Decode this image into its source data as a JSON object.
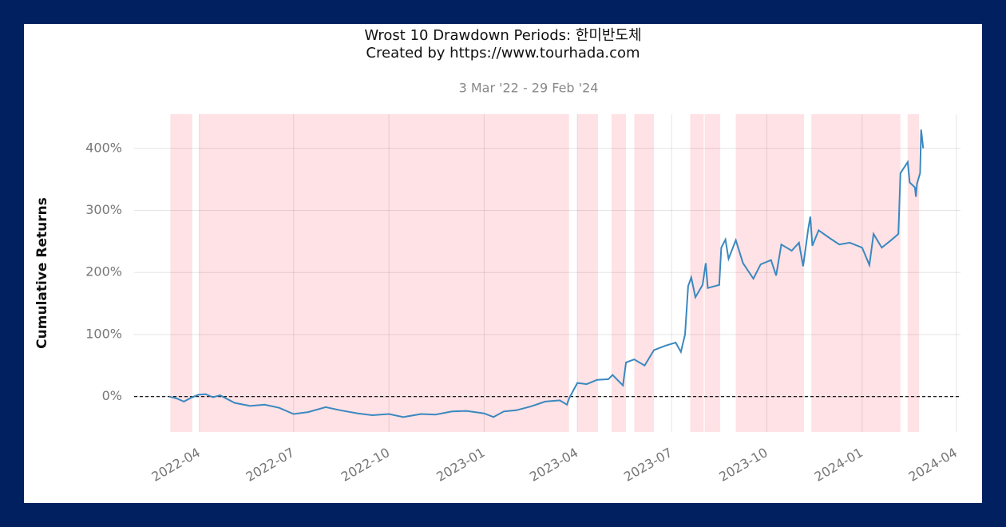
{
  "chart_data": {
    "type": "line",
    "title": "Wrost 10 Drawdown Periods: 한미반도체",
    "subtitle": "Created by https://www.tourhada.com",
    "date_range": "3 Mar '22 - 29 Feb '24",
    "ylabel": "Cumulative Returns",
    "xlim": [
      "2022-01-28",
      "2024-04-05"
    ],
    "ylim": [
      -57,
      455
    ],
    "xticks": [
      {
        "value": "2022-04-01",
        "label": "2022-04"
      },
      {
        "value": "2022-07-01",
        "label": "2022-07"
      },
      {
        "value": "2022-10-01",
        "label": "2022-10"
      },
      {
        "value": "2023-01-01",
        "label": "2023-01"
      },
      {
        "value": "2023-04-01",
        "label": "2023-04"
      },
      {
        "value": "2023-07-01",
        "label": "2023-07"
      },
      {
        "value": "2023-10-01",
        "label": "2023-10"
      },
      {
        "value": "2024-01-01",
        "label": "2024-01"
      },
      {
        "value": "2024-04-01",
        "label": "2024-04"
      }
    ],
    "yticks": [
      {
        "value": 0,
        "label": "0%"
      },
      {
        "value": 100,
        "label": "100%"
      },
      {
        "value": 200,
        "label": "200%"
      },
      {
        "value": 300,
        "label": "300%"
      },
      {
        "value": 400,
        "label": "400%"
      }
    ],
    "grid": true,
    "hline": 0,
    "drawdown_color": "#ffd6da",
    "drawdowns": [
      [
        "2022-03-04",
        "2022-03-25"
      ],
      [
        "2022-04-01",
        "2023-03-24"
      ],
      [
        "2023-04-01",
        "2023-04-21"
      ],
      [
        "2023-05-04",
        "2023-05-18"
      ],
      [
        "2023-05-26",
        "2023-06-14"
      ],
      [
        "2023-07-19",
        "2023-08-01"
      ],
      [
        "2023-08-02",
        "2023-08-17"
      ],
      [
        "2023-09-01",
        "2023-11-06"
      ],
      [
        "2023-11-13",
        "2024-02-07"
      ],
      [
        "2024-02-14",
        "2024-02-25"
      ]
    ],
    "color": "#3a88c0",
    "x": [
      "2022-03-03",
      "2022-03-10",
      "2022-03-17",
      "2022-03-24",
      "2022-03-31",
      "2022-04-07",
      "2022-04-14",
      "2022-04-21",
      "2022-05-05",
      "2022-05-20",
      "2022-06-03",
      "2022-06-17",
      "2022-07-01",
      "2022-07-15",
      "2022-08-01",
      "2022-08-15",
      "2022-09-01",
      "2022-09-15",
      "2022-10-01",
      "2022-10-15",
      "2022-11-01",
      "2022-11-15",
      "2022-12-01",
      "2022-12-15",
      "2023-01-01",
      "2023-01-10",
      "2023-01-20",
      "2023-02-01",
      "2023-02-15",
      "2023-03-01",
      "2023-03-15",
      "2023-03-22",
      "2023-03-24",
      "2023-04-01",
      "2023-04-10",
      "2023-04-20",
      "2023-05-01",
      "2023-05-05",
      "2023-05-15",
      "2023-05-18",
      "2023-05-26",
      "2023-06-05",
      "2023-06-14",
      "2023-06-25",
      "2023-07-05",
      "2023-07-10",
      "2023-07-14",
      "2023-07-17",
      "2023-07-20",
      "2023-07-24",
      "2023-07-31",
      "2023-08-03",
      "2023-08-05",
      "2023-08-16",
      "2023-08-18",
      "2023-08-22",
      "2023-08-25",
      "2023-09-01",
      "2023-09-08",
      "2023-09-18",
      "2023-09-25",
      "2023-10-05",
      "2023-10-10",
      "2023-10-15",
      "2023-10-25",
      "2023-11-01",
      "2023-11-05",
      "2023-11-10",
      "2023-11-12",
      "2023-11-14",
      "2023-11-20",
      "2023-12-01",
      "2023-12-10",
      "2023-12-20",
      "2024-01-01",
      "2024-01-08",
      "2024-01-12",
      "2024-01-20",
      "2024-01-29",
      "2024-02-05",
      "2024-02-07",
      "2024-02-14",
      "2024-02-16",
      "2024-02-21",
      "2024-02-22",
      "2024-02-23",
      "2024-02-26",
      "2024-02-27",
      "2024-02-29"
    ],
    "values": [
      0,
      -3,
      -8,
      -2,
      3,
      4,
      -1,
      2,
      -10,
      -15,
      -13,
      -18,
      -28,
      -25,
      -17,
      -22,
      -27,
      -30,
      -28,
      -33,
      -28,
      -29,
      -24,
      -23,
      -27,
      -33,
      -24,
      -22,
      -16,
      -8,
      -6,
      -13,
      -3,
      22,
      20,
      27,
      28,
      35,
      18,
      55,
      60,
      50,
      75,
      82,
      87,
      72,
      100,
      178,
      192,
      160,
      180,
      215,
      175,
      180,
      240,
      253,
      222,
      252,
      215,
      190,
      213,
      220,
      195,
      245,
      235,
      248,
      210,
      270,
      290,
      243,
      268,
      255,
      245,
      248,
      240,
      212,
      262,
      240,
      252,
      262,
      360,
      378,
      345,
      337,
      322,
      343,
      360,
      430,
      400
    ]
  }
}
